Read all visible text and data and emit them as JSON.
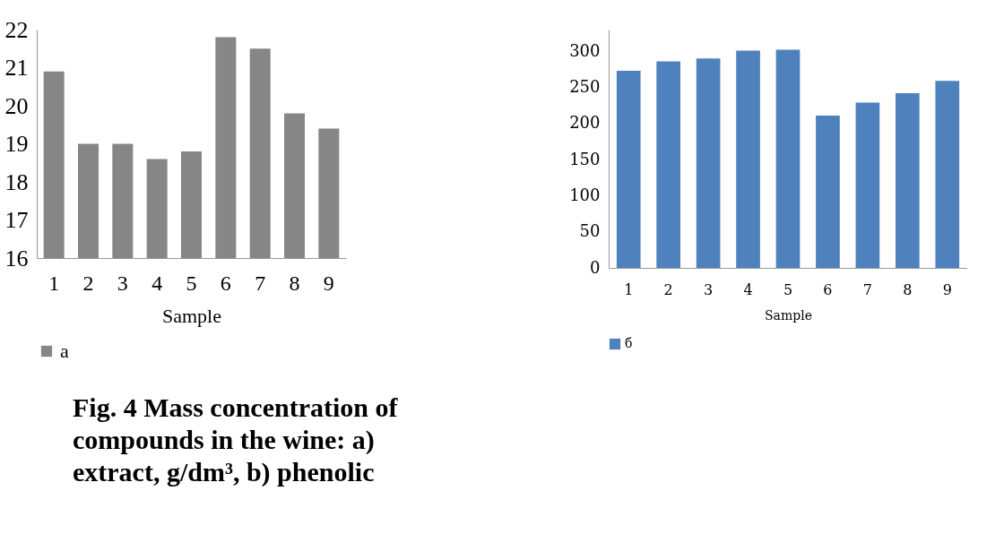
{
  "chart_data": [
    {
      "type": "bar",
      "xlabel": "Sample",
      "categories": [
        "1",
        "2",
        "3",
        "4",
        "5",
        "6",
        "7",
        "8",
        "9"
      ],
      "series": [
        {
          "name": "a",
          "color": "#868686",
          "values": [
            20.9,
            19.0,
            19.0,
            18.6,
            18.8,
            21.8,
            21.5,
            19.8,
            19.4
          ]
        }
      ],
      "ylim": [
        16,
        22
      ],
      "yticks": [
        16,
        17,
        18,
        19,
        20,
        21,
        22
      ],
      "grid": false,
      "legend": "bottom",
      "annotations": [
        "Fig. 4 Mass concentration of compounds in the wine: a) extract, g/dm³, b) phenolic"
      ]
    },
    {
      "type": "bar",
      "xlabel": "Sample",
      "categories": [
        "1",
        "2",
        "3",
        "4",
        "5",
        "6",
        "7",
        "8",
        "9"
      ],
      "series": [
        {
          "name": "б",
          "color": "#4f81bd",
          "values": [
            273,
            286,
            290,
            301,
            302,
            211,
            229,
            242,
            259
          ]
        }
      ],
      "ylim": [
        0,
        330
      ],
      "yticks": [
        0,
        50,
        100,
        150,
        200,
        250,
        300
      ],
      "grid": false,
      "legend": "bottom"
    }
  ]
}
